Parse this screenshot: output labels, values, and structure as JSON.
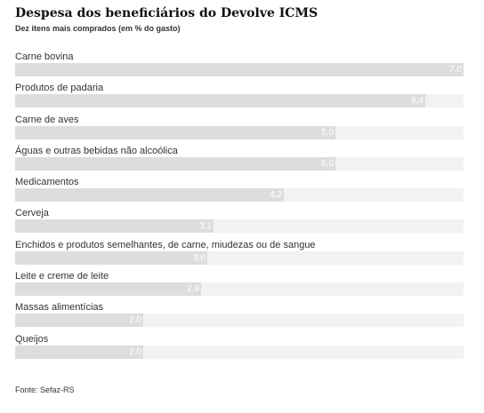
{
  "chart_data": {
    "type": "bar",
    "orientation": "horizontal",
    "title": "Despesa dos beneficiários do Devolve ICMS",
    "subtitle": "Dez itens mais comprados (em % do gasto)",
    "categories": [
      "Carne bovina",
      "Produtos de padaria",
      "Carne de aves",
      "Águas e outras bebidas não alcoólica",
      "Medicamentos",
      "Cerveja",
      "Enchidos e produtos semelhantes, de carne, miudezas ou de sangue",
      "Leite e creme de leite",
      "Massas alimentícias",
      "Queijos"
    ],
    "values": [
      7.0,
      6.4,
      5.0,
      5.0,
      4.2,
      3.1,
      3.0,
      2.9,
      2.0,
      2.0
    ],
    "value_labels": [
      "7,0",
      "6,4",
      "5,0",
      "5,0",
      "4,2",
      "3,1",
      "3,0",
      "2,9",
      "2,0",
      "2,0"
    ],
    "xlim": [
      0,
      7.0
    ],
    "grid": false,
    "legend": "none",
    "bar_color": "#dddddd",
    "track_color": "#f2f2f2",
    "value_label_color": "#ffffff"
  },
  "source": "Fonte: Sefaz-RS"
}
